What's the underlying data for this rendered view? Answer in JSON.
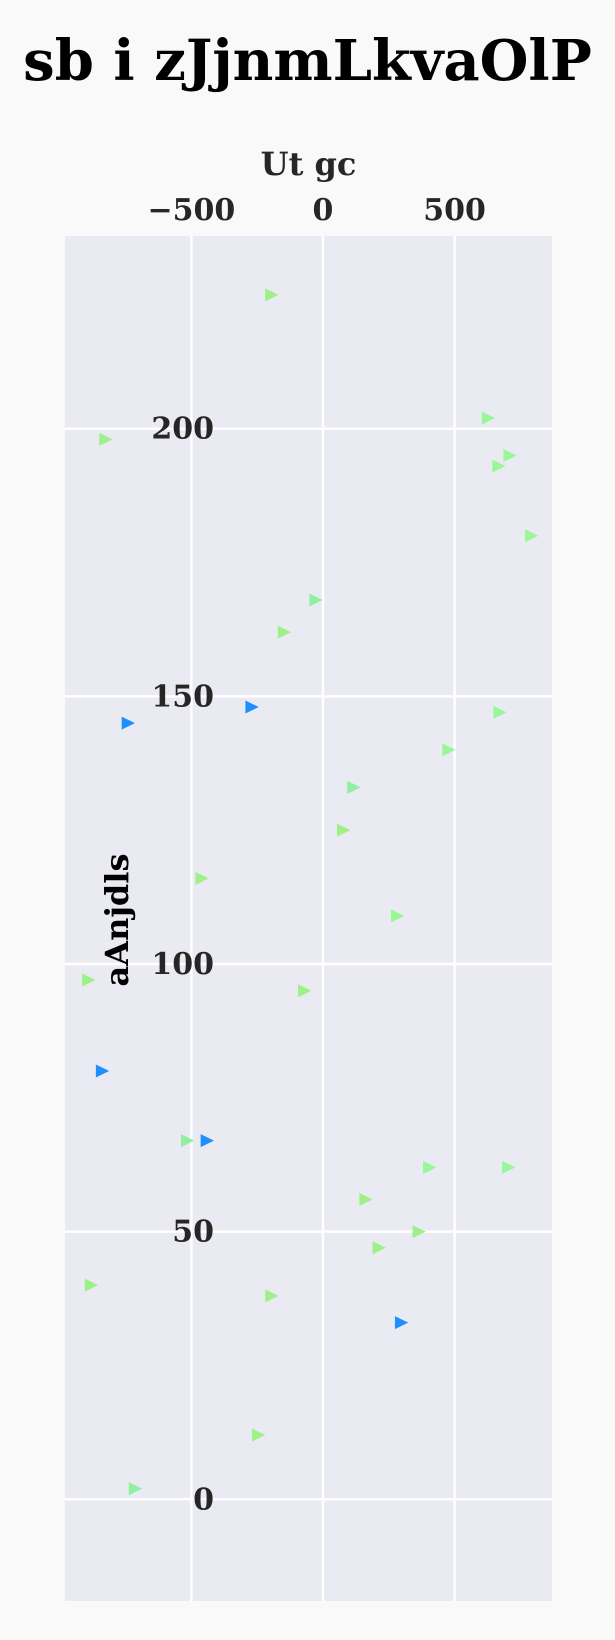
{
  "chart_data": {
    "type": "scatter",
    "title": "sb i zJjnmLkvaOlP",
    "xlabel": "Ut gc",
    "ylabel": "aAnjdls",
    "xlim": [
      -980,
      870
    ],
    "ylim": [
      -19,
      236
    ],
    "xticks": [
      -500,
      0,
      500
    ],
    "xtick_labels": [
      "−500",
      "0",
      "500"
    ],
    "yticks": [
      0,
      50,
      100,
      150,
      200
    ],
    "ytick_labels": [
      "0",
      "50",
      "100",
      "150",
      "200"
    ],
    "x_axis_position": "top",
    "y_tick_labels_position": "inside-left",
    "grid": true,
    "background_color": "#eaeaf2",
    "grid_color": "#ffffff",
    "marker": "triangle-right",
    "colors": {
      "blue": "#1e8fff",
      "green_a": "#98f898",
      "green_b": "#8ff0a0",
      "green_c": "#a0f08a"
    },
    "points": [
      {
        "x": -195,
        "y": 225,
        "color": "#a0f08a"
      },
      {
        "x": 628,
        "y": 202,
        "color": "#98f898"
      },
      {
        "x": 710,
        "y": 195,
        "color": "#98f898"
      },
      {
        "x": 668,
        "y": 193,
        "color": "#98f898"
      },
      {
        "x": -825,
        "y": 198,
        "color": "#a0f08a"
      },
      {
        "x": 792,
        "y": 180,
        "color": "#98f898"
      },
      {
        "x": -27,
        "y": 168,
        "color": "#8ff0a0"
      },
      {
        "x": -147,
        "y": 162,
        "color": "#a0f08a"
      },
      {
        "x": -270,
        "y": 148,
        "color": "#1e8fff"
      },
      {
        "x": -740,
        "y": 145,
        "color": "#1e8fff"
      },
      {
        "x": 672,
        "y": 147,
        "color": "#98f898"
      },
      {
        "x": 478,
        "y": 140,
        "color": "#98f898"
      },
      {
        "x": 117,
        "y": 133,
        "color": "#8ff0a0"
      },
      {
        "x": 78,
        "y": 125,
        "color": "#a0f08a"
      },
      {
        "x": -460,
        "y": 116,
        "color": "#a0f08a"
      },
      {
        "x": 283,
        "y": 109,
        "color": "#98f898"
      },
      {
        "x": -890,
        "y": 97,
        "color": "#a0f08a"
      },
      {
        "x": -70,
        "y": 95,
        "color": "#a0f08a"
      },
      {
        "x": -838,
        "y": 80,
        "color": "#1e8fff"
      },
      {
        "x": -515,
        "y": 67,
        "color": "#8ff0a0"
      },
      {
        "x": -440,
        "y": 67,
        "color": "#1e8fff"
      },
      {
        "x": 405,
        "y": 62,
        "color": "#98f898"
      },
      {
        "x": 705,
        "y": 62,
        "color": "#98f898"
      },
      {
        "x": 163,
        "y": 56,
        "color": "#a0f08a"
      },
      {
        "x": 365,
        "y": 50,
        "color": "#a0f08a"
      },
      {
        "x": 213,
        "y": 47,
        "color": "#a0f08a"
      },
      {
        "x": -880,
        "y": 40,
        "color": "#a0f08a"
      },
      {
        "x": -195,
        "y": 38,
        "color": "#a0f08a"
      },
      {
        "x": 298,
        "y": 33,
        "color": "#1e8fff"
      },
      {
        "x": -245,
        "y": 12,
        "color": "#a0f08a"
      },
      {
        "x": -713,
        "y": 2,
        "color": "#8ff0a0"
      }
    ]
  }
}
